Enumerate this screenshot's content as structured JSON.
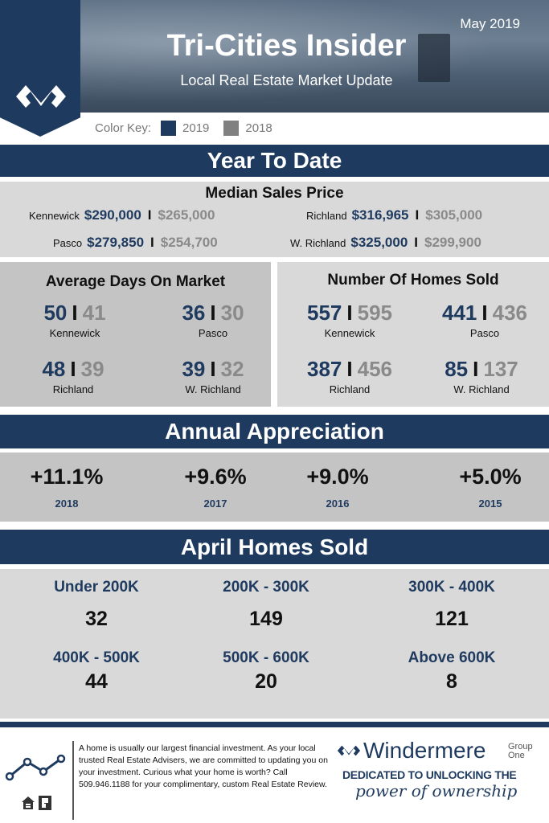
{
  "header": {
    "title": "Tri-Cities Insider",
    "subtitle": "Local Real Estate Market Update",
    "date": "May 2019",
    "logo_icon": "windermere-w-logo-icon"
  },
  "color_key": {
    "label": "Color Key:",
    "items": [
      {
        "label": "2019",
        "color": "#1f3a5f"
      },
      {
        "label": "2018",
        "color": "#808080"
      }
    ]
  },
  "ytd": {
    "heading": "Year To Date",
    "median": {
      "title": "Median Sales Price",
      "rows": [
        {
          "city": "Kennewick",
          "v2019": "$290,000",
          "v2018": "$265,000"
        },
        {
          "city": "Richland",
          "v2019": "$316,965",
          "v2018": "$305,000"
        },
        {
          "city": "Pasco",
          "v2019": "$279,850",
          "v2018": "$254,700"
        },
        {
          "city": "W. Richland",
          "v2019": "$325,000",
          "v2018": "$299,900"
        }
      ]
    },
    "dom": {
      "title": "Average Days On Market",
      "items": [
        {
          "city": "Kennewick",
          "v2019": "50",
          "v2018": "41"
        },
        {
          "city": "Pasco",
          "v2019": "36",
          "v2018": "30"
        },
        {
          "city": "Richland",
          "v2019": "48",
          "v2018": "39"
        },
        {
          "city": "W. Richland",
          "v2019": "39",
          "v2018": "32"
        }
      ]
    },
    "sold": {
      "title": "Number Of Homes Sold",
      "items": [
        {
          "city": "Kennewick",
          "v2019": "557",
          "v2018": "595"
        },
        {
          "city": "Pasco",
          "v2019": "441",
          "v2018": "436"
        },
        {
          "city": "Richland",
          "v2019": "387",
          "v2018": "456"
        },
        {
          "city": "W. Richland",
          "v2019": "85",
          "v2018": "137"
        }
      ]
    }
  },
  "appreciation": {
    "heading": "Annual Appreciation",
    "items": [
      {
        "value": "+11.1%",
        "year": "2018"
      },
      {
        "value": "+9.6%",
        "year": "2017"
      },
      {
        "value": "+9.0%",
        "year": "2016"
      },
      {
        "value": "+5.0%",
        "year": "2015"
      }
    ]
  },
  "april": {
    "heading": "April Homes Sold",
    "items": [
      {
        "range": "Under 200K",
        "count": "32"
      },
      {
        "range": "200K - 300K",
        "count": "149"
      },
      {
        "range": "300K - 400K",
        "count": "121"
      },
      {
        "range": "400K - 500K",
        "count": "44"
      },
      {
        "range": "500K - 600K",
        "count": "20"
      },
      {
        "range": "Above 600K",
        "count": "8"
      }
    ]
  },
  "footer": {
    "separator": "I",
    "message": "A home is usually our largest financial investment. As your local trusted Real Estate Advisers, we are committed to updating you on your investment. Curious what your home is worth? Call 509.946.1188 for your complimentary, custom Real Estate Review.",
    "brand": "Windermere",
    "brand_group": "Group One",
    "tagline_top": "DEDICATED TO UNLOCKING THE",
    "tagline_bottom": "power of ownership",
    "icons": [
      "line-chart-icon",
      "equal-housing-icon",
      "realtor-icon"
    ]
  }
}
